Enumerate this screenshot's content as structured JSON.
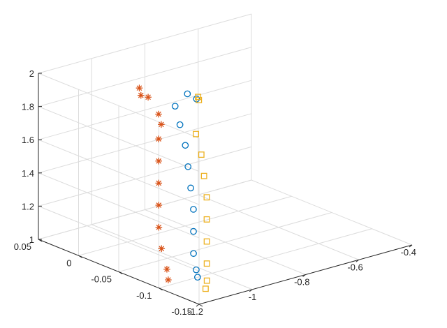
{
  "chart_data": {
    "type": "scatter",
    "title": "",
    "xlabel": "",
    "ylabel": "",
    "zlabel": "",
    "grid": true,
    "legend": "none",
    "view": "3d",
    "xlim": [
      -1.2,
      -0.4
    ],
    "ylim": [
      -0.15,
      0.05
    ],
    "zlim": [
      1,
      2
    ],
    "x_ticks": [
      -1.2,
      -1,
      -0.8,
      -0.6,
      -0.4
    ],
    "x_tick_labels": [
      "-1.2",
      "-1",
      "-0.8",
      "-0.6",
      "-0.4"
    ],
    "y_ticks": [
      -0.15,
      -0.1,
      -0.05,
      0,
      0.05
    ],
    "y_tick_labels": [
      "-0.15",
      "-0.1",
      "-0.05",
      "0",
      "0.05"
    ],
    "z_ticks": [
      1,
      1.2,
      1.4,
      1.6,
      1.8,
      2
    ],
    "z_tick_labels": [
      "1",
      "1.2",
      "1.4",
      "1.6",
      "1.8",
      "2"
    ],
    "series": [
      {
        "marker": "asterisk",
        "color": "#D95319",
        "points": [
          [
            -0.993,
            -0.007,
            1.93
          ],
          [
            -0.978,
            -0.013,
            1.88
          ],
          [
            -0.984,
            -0.006,
            1.88
          ],
          [
            -0.975,
            -0.025,
            1.8
          ],
          [
            -0.98,
            -0.03,
            1.75
          ],
          [
            -1.02,
            -0.04,
            1.7
          ],
          [
            -1.05,
            -0.05,
            1.6
          ],
          [
            -1.08,
            -0.06,
            1.5
          ],
          [
            -1.11,
            -0.07,
            1.4
          ],
          [
            -1.14,
            -0.08,
            1.3
          ],
          [
            -1.16,
            -0.09,
            1.2
          ],
          [
            -1.17,
            -0.1,
            1.1
          ],
          [
            -1.18,
            -0.105,
            1.05
          ]
        ]
      },
      {
        "marker": "circle",
        "color": "#0072BD",
        "points": [
          [
            -0.927,
            -0.045,
            1.94
          ],
          [
            -0.926,
            -0.056,
            1.93
          ],
          [
            -0.931,
            -0.031,
            1.84
          ],
          [
            -0.94,
            -0.04,
            1.75
          ],
          [
            -0.95,
            -0.05,
            1.65
          ],
          [
            -0.97,
            -0.06,
            1.55
          ],
          [
            -0.99,
            -0.07,
            1.45
          ],
          [
            -1.01,
            -0.08,
            1.35
          ],
          [
            -1.04,
            -0.09,
            1.25
          ],
          [
            -1.07,
            -0.1,
            1.15
          ],
          [
            -1.09,
            -0.11,
            1.08
          ],
          [
            -1.1,
            -0.115,
            1.05
          ]
        ]
      },
      {
        "marker": "square",
        "color": "#EDB120",
        "points": [
          [
            -0.899,
            -0.05,
            1.9
          ],
          [
            -0.902,
            -0.05,
            1.92
          ],
          [
            -0.91,
            -0.05,
            1.7
          ],
          [
            -0.92,
            -0.06,
            1.6
          ],
          [
            -0.94,
            -0.07,
            1.5
          ],
          [
            -0.96,
            -0.08,
            1.4
          ],
          [
            -0.99,
            -0.09,
            1.3
          ],
          [
            -1.02,
            -0.1,
            1.2
          ],
          [
            -1.05,
            -0.11,
            1.1
          ],
          [
            -1.08,
            -0.12,
            1.03
          ],
          [
            -1.1,
            -0.125,
            1.0
          ]
        ]
      }
    ]
  }
}
